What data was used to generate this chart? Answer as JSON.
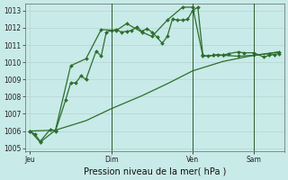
{
  "background_color": "#c8eae8",
  "grid_color": "#b0d0cc",
  "line_color": "#2d6e2d",
  "title": "Pression niveau de la mer( hPa )",
  "ylim": [
    1004.8,
    1013.4
  ],
  "yticks": [
    1005,
    1006,
    1007,
    1008,
    1009,
    1010,
    1011,
    1012,
    1013
  ],
  "xtick_labels": [
    "Jeu",
    "Dim",
    "Ven",
    "Sam"
  ],
  "xtick_positions": [
    0,
    16,
    32,
    44
  ],
  "xlim": [
    -1,
    50
  ],
  "vline_positions": [
    16,
    32,
    44
  ],
  "line1_x": [
    0,
    1,
    2,
    4,
    5,
    7,
    8,
    9,
    10,
    11,
    13,
    14,
    15,
    16,
    17,
    18,
    19,
    20,
    21,
    22,
    23,
    24,
    25,
    26,
    27,
    28,
    29,
    30,
    31,
    32,
    33,
    34,
    35,
    36,
    37,
    38,
    39,
    41,
    42,
    44,
    46,
    47,
    48,
    49
  ],
  "line1_y": [
    1006.0,
    1005.8,
    1005.4,
    1006.1,
    1006.0,
    1007.8,
    1008.8,
    1008.8,
    1009.2,
    1009.0,
    1010.65,
    1010.35,
    1011.75,
    1011.85,
    1011.9,
    1011.75,
    1011.8,
    1011.85,
    1012.05,
    1011.8,
    1011.95,
    1011.75,
    1011.45,
    1011.1,
    1011.5,
    1012.5,
    1012.45,
    1012.45,
    1012.5,
    1013.0,
    1013.2,
    1010.4,
    1010.35,
    1010.4,
    1010.45,
    1010.4,
    1010.5,
    1010.6,
    1010.55,
    1010.55,
    1010.3,
    1010.4,
    1010.45,
    1010.5
  ],
  "line2_x": [
    0,
    2,
    5,
    8,
    11,
    14,
    17,
    19,
    22,
    24,
    27,
    30,
    32,
    34,
    36,
    38,
    41,
    44,
    47,
    49
  ],
  "line2_y": [
    1006.0,
    1005.35,
    1006.05,
    1009.8,
    1010.2,
    1011.9,
    1011.85,
    1012.25,
    1011.75,
    1011.5,
    1012.45,
    1013.2,
    1013.2,
    1010.35,
    1010.4,
    1010.4,
    1010.35,
    1010.4,
    1010.5,
    1010.6
  ],
  "line3_x": [
    0,
    5,
    11,
    16,
    22,
    27,
    32,
    38,
    44,
    49
  ],
  "line3_y": [
    1006.0,
    1006.05,
    1006.6,
    1007.3,
    1008.05,
    1008.75,
    1009.5,
    1010.05,
    1010.4,
    1010.6
  ]
}
